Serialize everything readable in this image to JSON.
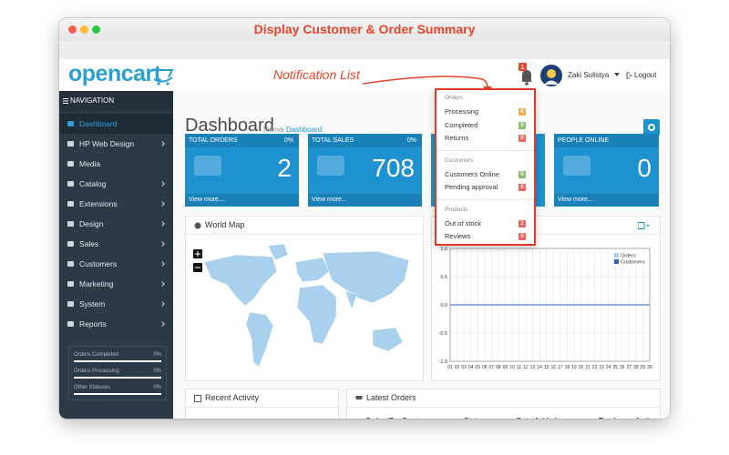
{
  "window_title": "Display Customer & Order Summary",
  "annotation": "Notification List",
  "header": {
    "logo": "opencart",
    "notification_count": 1,
    "user": "Zaki Sulistya",
    "logout": "Logout"
  },
  "sidebar": {
    "heading": "NAVIGATION",
    "menu": [
      {
        "label": "Dashboard",
        "active": true,
        "submenu": false
      },
      {
        "label": "HP Web Design",
        "active": false,
        "submenu": true
      },
      {
        "label": "Media",
        "active": false,
        "submenu": false
      },
      {
        "label": "Catalog",
        "active": false,
        "submenu": true
      },
      {
        "label": "Extensions",
        "active": false,
        "submenu": true
      },
      {
        "label": "Design",
        "active": false,
        "submenu": true
      },
      {
        "label": "Sales",
        "active": false,
        "submenu": true
      },
      {
        "label": "Customers",
        "active": false,
        "submenu": true
      },
      {
        "label": "Marketing",
        "active": false,
        "submenu": true
      },
      {
        "label": "System",
        "active": false,
        "submenu": true
      },
      {
        "label": "Reports",
        "active": false,
        "submenu": true
      }
    ],
    "stats": [
      {
        "label": "Orders Completed",
        "value": "0%"
      },
      {
        "label": "Orders Processing",
        "value": "0%"
      },
      {
        "label": "Other Statuses",
        "value": "0%"
      }
    ]
  },
  "page": {
    "title": "Dashboard",
    "breadcrumb": [
      "Home",
      "Dashboard"
    ]
  },
  "tiles": [
    {
      "title": "TOTAL ORDERS",
      "change": "0%",
      "value": 2,
      "link": "View more..."
    },
    {
      "title": "TOTAL SALES",
      "change": "0%",
      "value": 708,
      "link": "View more..."
    },
    {
      "title": "PEOPLE ONLINE",
      "value": 0,
      "link": "View more..."
    }
  ],
  "panels": {
    "world_map": "World Map",
    "recent_activity": "Recent Activity",
    "latest_orders": {
      "title": "Latest Orders",
      "columns": [
        "Order ID",
        "Customer",
        "Status",
        "Date Added",
        "Total",
        "Action"
      ]
    }
  },
  "sales_chart": {
    "type": "line",
    "categories": [
      "01",
      "02",
      "03",
      "04",
      "05",
      "06",
      "07",
      "08",
      "09",
      "10",
      "11",
      "12",
      "13",
      "14",
      "15",
      "16",
      "17",
      "18",
      "19",
      "20",
      "21",
      "22",
      "23",
      "24",
      "25",
      "26",
      "27",
      "28",
      "29",
      "30"
    ],
    "series": [
      {
        "name": "Orders",
        "color": "#a9cdef",
        "values": [
          0,
          0,
          0,
          0,
          0,
          0,
          0,
          0,
          0,
          0,
          0,
          0,
          0,
          0,
          0,
          0,
          0,
          0,
          0,
          0,
          0,
          0,
          0,
          0,
          0,
          0,
          0,
          0,
          0,
          0
        ]
      },
      {
        "name": "Customers",
        "color": "#2c63c9",
        "values": [
          0,
          0,
          0,
          0,
          0,
          0,
          0,
          0,
          0,
          0,
          0,
          0,
          0,
          0,
          0,
          0,
          0,
          0,
          0,
          0,
          0,
          0,
          0,
          0,
          0,
          0,
          0,
          0,
          0,
          0
        ]
      }
    ],
    "ylim": [
      -1,
      1
    ],
    "yticks": [
      {
        "value": 1,
        "label": "1.0"
      },
      {
        "value": 0.5,
        "label": "0.5"
      },
      {
        "value": 0,
        "label": "0.0"
      },
      {
        "value": -0.5,
        "label": "-0.5"
      },
      {
        "value": -1,
        "label": "-1.0"
      }
    ],
    "grid": true
  },
  "notifications": {
    "groups": [
      {
        "heading": "Orders",
        "items": [
          {
            "label": "Processing",
            "count": 0,
            "color": "#f0ad4e"
          },
          {
            "label": "Completed",
            "count": 0,
            "color": "#8fbb6c"
          },
          {
            "label": "Returns",
            "count": 0,
            "color": "#f0625a"
          }
        ]
      },
      {
        "heading": "Customers",
        "items": [
          {
            "label": "Customers Online",
            "count": 0,
            "color": "#8fbb6c"
          },
          {
            "label": "Pending approval",
            "count": 0,
            "color": "#f0625a"
          }
        ]
      },
      {
        "heading": "Products",
        "items": [
          {
            "label": "Out of stock",
            "count": 1,
            "color": "#f0625a"
          },
          {
            "label": "Reviews",
            "count": 0,
            "color": "#f0625a"
          }
        ]
      }
    ]
  }
}
